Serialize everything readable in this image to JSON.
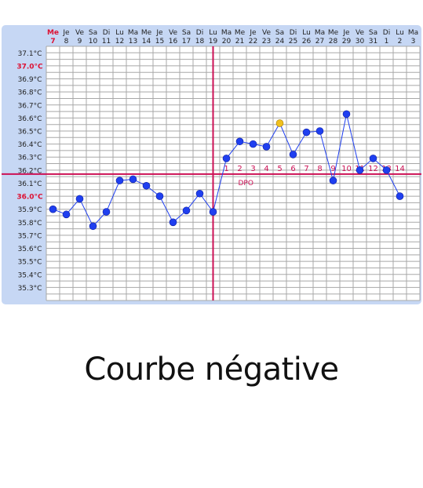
{
  "caption": "Courbe négative",
  "chart_data": {
    "type": "line",
    "title": "",
    "xlabel": "",
    "ylabel": "",
    "ylim": [
      35.2,
      37.15
    ],
    "day_names": [
      "Me",
      "Je",
      "Ve",
      "Sa",
      "Di",
      "Lu",
      "Ma",
      "Me",
      "Je",
      "Ve",
      "Sa",
      "Di",
      "Lu",
      "Ma",
      "Me",
      "Je",
      "Ve",
      "Sa",
      "Di",
      "Lu",
      "Ma",
      "Me",
      "Je",
      "Ve",
      "Sa",
      "Di",
      "Lu",
      "Ma"
    ],
    "day_numbers": [
      "7",
      "8",
      "9",
      "10",
      "11",
      "12",
      "13",
      "14",
      "15",
      "16",
      "17",
      "18",
      "19",
      "20",
      "21",
      "22",
      "23",
      "24",
      "25",
      "26",
      "27",
      "28",
      "29",
      "30",
      "31",
      "1",
      "2",
      "3"
    ],
    "y_ticks": [
      "37.1°C",
      "37.0°C",
      "36.9°C",
      "36.8°C",
      "36.7°C",
      "36.6°C",
      "36.5°C",
      "36.4°C",
      "36.3°C",
      "36.2°C",
      "36.1°C",
      "36.0°C",
      "35.9°C",
      "35.8°C",
      "35.7°C",
      "35.6°C",
      "35.5°C",
      "35.4°C",
      "35.3°C"
    ],
    "y_tick_values": [
      37.1,
      37.0,
      36.9,
      36.8,
      36.7,
      36.6,
      36.5,
      36.4,
      36.3,
      36.2,
      36.1,
      36.0,
      35.9,
      35.8,
      35.7,
      35.6,
      35.5,
      35.4,
      35.3
    ],
    "highlight_ticks": [
      "37.0°C",
      "36.0°C"
    ],
    "series": [
      {
        "values": [
          35.9,
          35.86,
          35.98,
          35.77,
          35.88,
          36.12,
          36.13,
          36.08,
          36.0,
          35.8,
          35.89,
          36.02,
          35.88,
          36.29,
          36.42,
          36.4,
          36.38,
          36.56,
          36.32,
          36.49,
          36.5,
          36.12,
          36.63,
          36.2,
          36.29,
          36.2,
          36.0,
          null
        ],
        "special_points": [
          17
        ],
        "color": "#1f3ff0",
        "special_color": "#f0c020"
      }
    ],
    "ovulation_index": 12,
    "coverline_value": 36.17,
    "dpo_numbers": [
      "1",
      "2",
      "3",
      "4",
      "5",
      "6",
      "7",
      "8",
      "9",
      "10",
      "11",
      "12",
      "13",
      "14"
    ],
    "dpo_label": "DPO",
    "grid": true,
    "colors": {
      "panel_bg": "#c6d7f4",
      "grid_bg": "#ffffff",
      "grid_line": "#a8a8a8",
      "marker_line": "#cc1155",
      "highlight_text": "#dd1133",
      "text": "#222222"
    }
  }
}
